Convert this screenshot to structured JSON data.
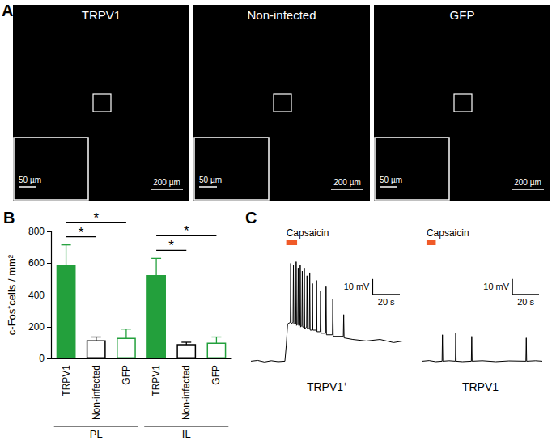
{
  "panel_labels": [
    "A",
    "B",
    "C"
  ],
  "images": {
    "panels": [
      {
        "title": "TRPV1",
        "scale_bar": "200 µm",
        "inset_scale_bar": "50 µm"
      },
      {
        "title": "Non-infected",
        "scale_bar": "200 µm",
        "inset_scale_bar": "50 µm"
      },
      {
        "title": "GFP",
        "scale_bar": "200 µm",
        "inset_scale_bar": "50 µm"
      }
    ]
  },
  "chart_data": [
    {
      "type": "bar",
      "ylabel": "c-Fos⁺cells / mm²",
      "categories": [
        "TRPV1",
        "Non-infected",
        "GFP",
        "TRPV1",
        "Non-infected",
        "GFP"
      ],
      "groups": [
        "PL",
        "IL"
      ],
      "values": [
        590,
        115,
        130,
        525,
        90,
        100
      ],
      "errors": [
        125,
        20,
        55,
        105,
        12,
        35
      ],
      "colors": [
        "#23a03c",
        "#ffffff",
        "#ffffff",
        "#23a03c",
        "#ffffff",
        "#ffffff"
      ],
      "annotations": [
        {
          "text": "*",
          "from": 0,
          "to": 1
        },
        {
          "text": "*",
          "from": 0,
          "to": 2
        },
        {
          "text": "*",
          "from": 3,
          "to": 4
        },
        {
          "text": "*",
          "from": 3,
          "to": 5
        }
      ],
      "ylim": [
        0,
        800
      ],
      "yticks": [
        0,
        200,
        400,
        600,
        800
      ],
      "grid": false
    },
    {
      "type": "line",
      "title": "TRPV1⁺",
      "x": [
        0,
        5,
        10,
        15,
        20,
        25,
        26,
        27,
        29,
        29.3,
        29.6,
        31,
        31.3,
        31.6,
        33,
        33.3,
        33.6,
        34.5,
        34.8,
        35.1,
        36,
        36.3,
        36.6,
        37.5,
        37.8,
        38.1,
        39,
        39.3,
        39.6,
        41,
        41.3,
        41.6,
        43,
        43.3,
        43.6,
        45,
        45.3,
        45.6,
        48,
        48.3,
        48.6,
        51,
        51.3,
        51.6,
        55,
        55.3,
        55.6,
        60,
        60.3,
        60.6,
        68,
        68.3,
        68.6,
        75,
        85,
        95,
        105,
        112
      ],
      "values": [
        0,
        0.5,
        -0.5,
        0.3,
        -0.3,
        0,
        10,
        24,
        25,
        63,
        24,
        25,
        62,
        24,
        24,
        64,
        23,
        24,
        60,
        23,
        23,
        62,
        22,
        23,
        58,
        22,
        22,
        60,
        21,
        22,
        55,
        21,
        21,
        57,
        20,
        20,
        50,
        20,
        20,
        52,
        19,
        19,
        45,
        18,
        18,
        48,
        17,
        17,
        40,
        16,
        16,
        30,
        15,
        14,
        13,
        14,
        12,
        13
      ],
      "color": "#000000",
      "stimulus": {
        "label": "Capsaicin",
        "start": 26,
        "end": 34,
        "color": "#f05a28"
      },
      "scale_bars": {
        "y": {
          "value": 10,
          "label": "10 mV"
        },
        "x": {
          "value": 20,
          "label": "20 s"
        }
      },
      "xlim": [
        0,
        112
      ],
      "ylim": [
        -5,
        70
      ],
      "tick_labels": false
    },
    {
      "type": "line",
      "title": "TRPV1⁻",
      "x": [
        0,
        5,
        10,
        14.7,
        15,
        15.3,
        20,
        24.7,
        25,
        25.3,
        30,
        36.7,
        37,
        37.3,
        45,
        55,
        65,
        77.7,
        78,
        78.3,
        85,
        90
      ],
      "values": [
        0,
        0.4,
        -0.3,
        0,
        17,
        0,
        0.3,
        0,
        18,
        0,
        -0.3,
        0,
        16,
        0,
        0.3,
        -0.3,
        0.2,
        0,
        15,
        0,
        0.3,
        0
      ],
      "color": "#000000",
      "stimulus": {
        "label": "Capsaicin",
        "start": 3,
        "end": 10,
        "color": "#f05a28"
      },
      "scale_bars": {
        "y": {
          "value": 10,
          "label": "10 mV"
        },
        "x": {
          "value": 20,
          "label": "20 s"
        }
      },
      "xlim": [
        0,
        90
      ],
      "ylim": [
        -5,
        70
      ],
      "tick_labels": false
    }
  ]
}
